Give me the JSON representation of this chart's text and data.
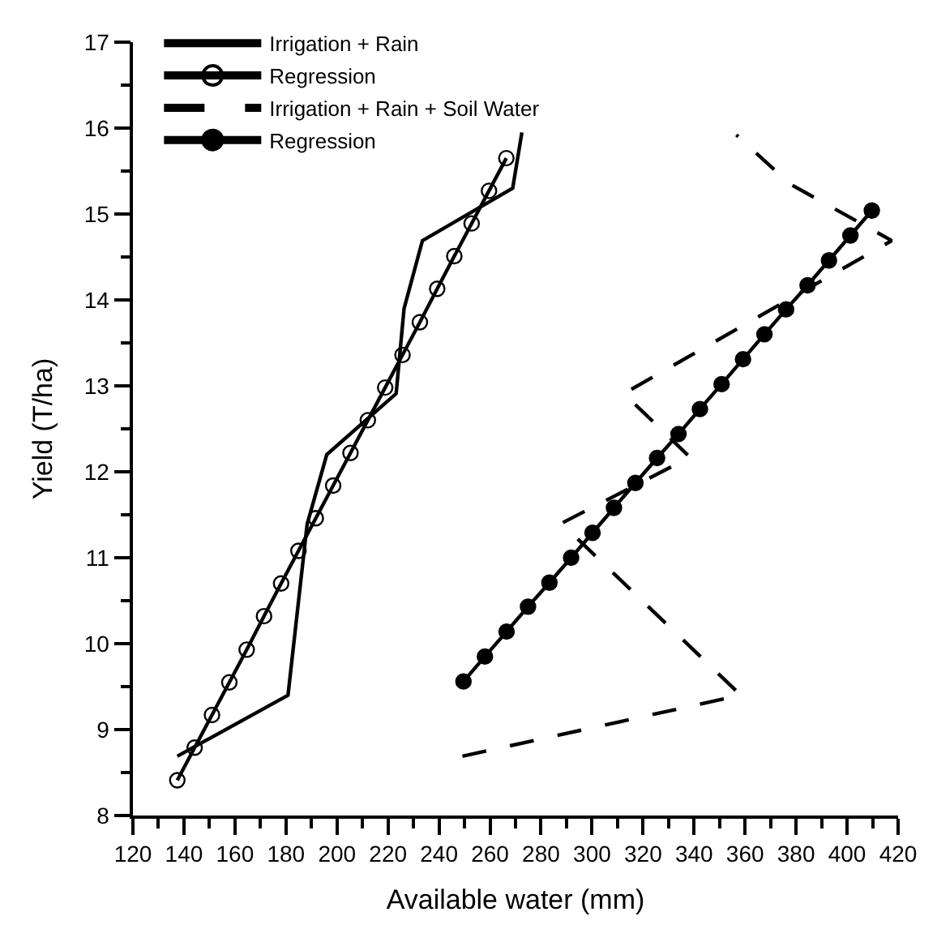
{
  "chart_data": {
    "type": "line",
    "xlabel": "Available water (mm)",
    "ylabel": "Yield (T/ha)",
    "xlim": [
      120,
      420
    ],
    "xticks": [
      120,
      {
        "value": 130,
        "label": null
      },
      140,
      {
        "value": 150,
        "label": null
      },
      160,
      {
        "value": 170,
        "label": null
      },
      180,
      {
        "value": 190,
        "label": null
      },
      200,
      {
        "value": 210,
        "label": null
      },
      220,
      {
        "value": 230,
        "label": null
      },
      240,
      {
        "value": 250,
        "label": null
      },
      260,
      {
        "value": 270,
        "label": null
      },
      280,
      {
        "value": 290,
        "label": null
      },
      300,
      {
        "value": 310,
        "label": null
      },
      320,
      {
        "value": 330,
        "label": null
      },
      340,
      {
        "value": 350,
        "label": null
      },
      360,
      {
        "value": 370,
        "label": null
      },
      380,
      {
        "value": 390,
        "label": null
      },
      400,
      {
        "value": 410,
        "label": null
      },
      420
    ],
    "ylim": [
      8,
      17
    ],
    "yticks": [
      8,
      {
        "value": 8.5,
        "label": null
      },
      9,
      {
        "value": 9.5,
        "label": null
      },
      10,
      {
        "value": 10.5,
        "label": null
      },
      11,
      {
        "value": 11.5,
        "label": null
      },
      12,
      {
        "value": 12.5,
        "label": null
      },
      13,
      {
        "value": 13.5,
        "label": null
      },
      14,
      {
        "value": 14.5,
        "label": null
      },
      15,
      {
        "value": 15.5,
        "label": null
      },
      16,
      {
        "value": 16.5,
        "label": null
      },
      17
    ],
    "legend": "top left",
    "series": [
      {
        "name": "Irrigation + Rain",
        "color": "#000000",
        "marker": "none",
        "line_style": "solid",
        "x": [
          137.4,
          180.8,
          188.3,
          196.0,
          223.2,
          226.3,
          233.5,
          268.9,
          272.5
        ],
        "values": [
          8.69,
          9.4,
          11.39,
          12.2,
          12.91,
          13.9,
          14.69,
          15.3,
          15.95
        ]
      },
      {
        "name": "Regression",
        "color": "#000000",
        "marker": "circle-open",
        "line_style": "solid",
        "x": [
          137.4,
          144.2,
          151.0,
          157.8,
          164.6,
          171.4,
          178.1,
          184.9,
          191.7,
          198.5,
          205.3,
          212.1,
          218.9,
          225.7,
          232.5,
          239.3,
          246.0,
          252.8,
          259.6,
          266.4
        ],
        "values": [
          8.41,
          8.79,
          9.17,
          9.55,
          9.93,
          10.32,
          10.7,
          11.08,
          11.46,
          11.84,
          12.22,
          12.6,
          12.98,
          13.36,
          13.74,
          14.13,
          14.51,
          14.89,
          15.27,
          15.65
        ]
      },
      {
        "name": "Irrigation + Rain + Soil Water",
        "color": "#000000",
        "marker": "none",
        "line_style": "dashed",
        "x": [
          249.2,
          358.3,
          288.0,
          338.4,
          312.5,
          417.5,
          377.6,
          356.6
        ],
        "values": [
          8.69,
          9.4,
          11.4,
          12.17,
          12.91,
          14.69,
          15.35,
          15.92
        ]
      },
      {
        "name": "Regression",
        "color": "#000000",
        "marker": "circle",
        "line_style": "solid",
        "x": [
          249.6,
          258.0,
          266.5,
          274.9,
          283.3,
          291.8,
          300.2,
          308.6,
          317.0,
          325.5,
          333.9,
          342.3,
          350.8,
          359.2,
          367.6,
          376.1,
          384.5,
          392.9,
          401.3,
          409.7
        ],
        "values": [
          9.56,
          9.85,
          10.14,
          10.43,
          10.71,
          11.0,
          11.29,
          11.58,
          11.87,
          12.16,
          12.44,
          12.73,
          13.02,
          13.31,
          13.6,
          13.89,
          14.17,
          14.46,
          14.75,
          15.04
        ]
      }
    ]
  }
}
